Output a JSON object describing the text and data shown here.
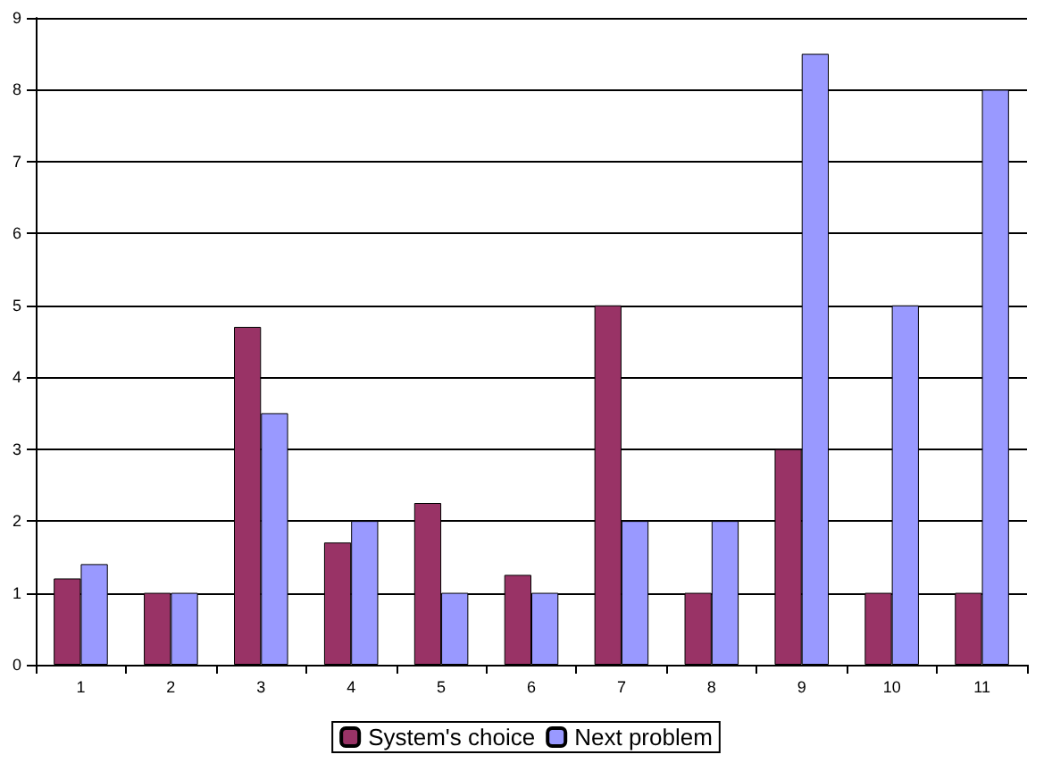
{
  "chart_data": {
    "type": "bar",
    "categories": [
      "1",
      "2",
      "3",
      "4",
      "5",
      "6",
      "7",
      "8",
      "9",
      "10",
      "11"
    ],
    "series": [
      {
        "name": "System's choice",
        "color": "#993366",
        "values": [
          1.2,
          1,
          4.7,
          1.7,
          2.25,
          1.25,
          5,
          1,
          3,
          1,
          1
        ]
      },
      {
        "name": "Next problem",
        "color": "#9999ff",
        "values": [
          1.4,
          1,
          3.5,
          2,
          1,
          1,
          2,
          2,
          8.5,
          5,
          8
        ]
      }
    ],
    "ylim": [
      0,
      9
    ],
    "yticks": [
      0,
      1,
      2,
      3,
      4,
      5,
      6,
      7,
      8,
      9
    ],
    "grid": "y",
    "legend": "bottom"
  }
}
